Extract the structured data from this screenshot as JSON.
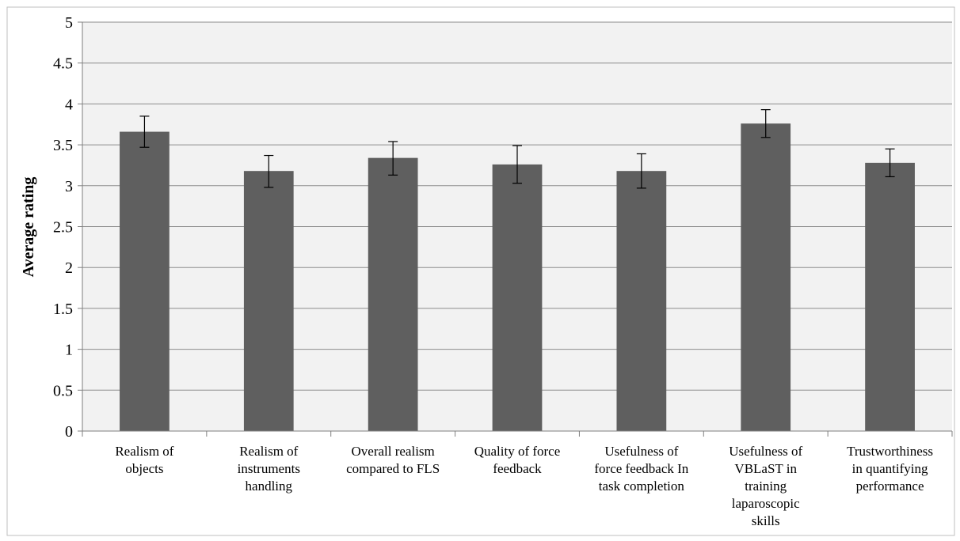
{
  "chart_data": {
    "type": "bar",
    "title": "",
    "xlabel": "",
    "ylabel": "Average rating",
    "ylim": [
      0,
      5
    ],
    "y_ticks": [
      "0",
      "0.5",
      "1",
      "1.5",
      "2",
      "2.5",
      "3",
      "3.5",
      "4",
      "4.5",
      "5"
    ],
    "grid": true,
    "legend": "none",
    "categories": [
      [
        "Realism of",
        "objects"
      ],
      [
        "Realism of",
        "instruments",
        "handling"
      ],
      [
        "Overall realism",
        "compared to FLS"
      ],
      [
        "Quality of force",
        "feedback"
      ],
      [
        "Usefulness of",
        "force feedback In",
        "task completion"
      ],
      [
        "Usefulness of",
        "VBLaST in",
        "training",
        "laparoscopic",
        "skills"
      ],
      [
        "Trustworthiness",
        "in quantifying",
        "performance"
      ]
    ],
    "series": [
      {
        "values": [
          3.66,
          3.18,
          3.34,
          3.26,
          3.18,
          3.76,
          3.28
        ],
        "error_low": [
          0.19,
          0.2,
          0.21,
          0.23,
          0.21,
          0.17,
          0.17
        ],
        "error_high": [
          0.19,
          0.19,
          0.2,
          0.23,
          0.21,
          0.17,
          0.17
        ]
      }
    ],
    "colors": {
      "bar": "#5f5f5f",
      "plot_background": "#f2f2f2",
      "gridline": "#8c8c8c",
      "axis": "#7f7f7f",
      "error_bar": "#000000"
    }
  }
}
